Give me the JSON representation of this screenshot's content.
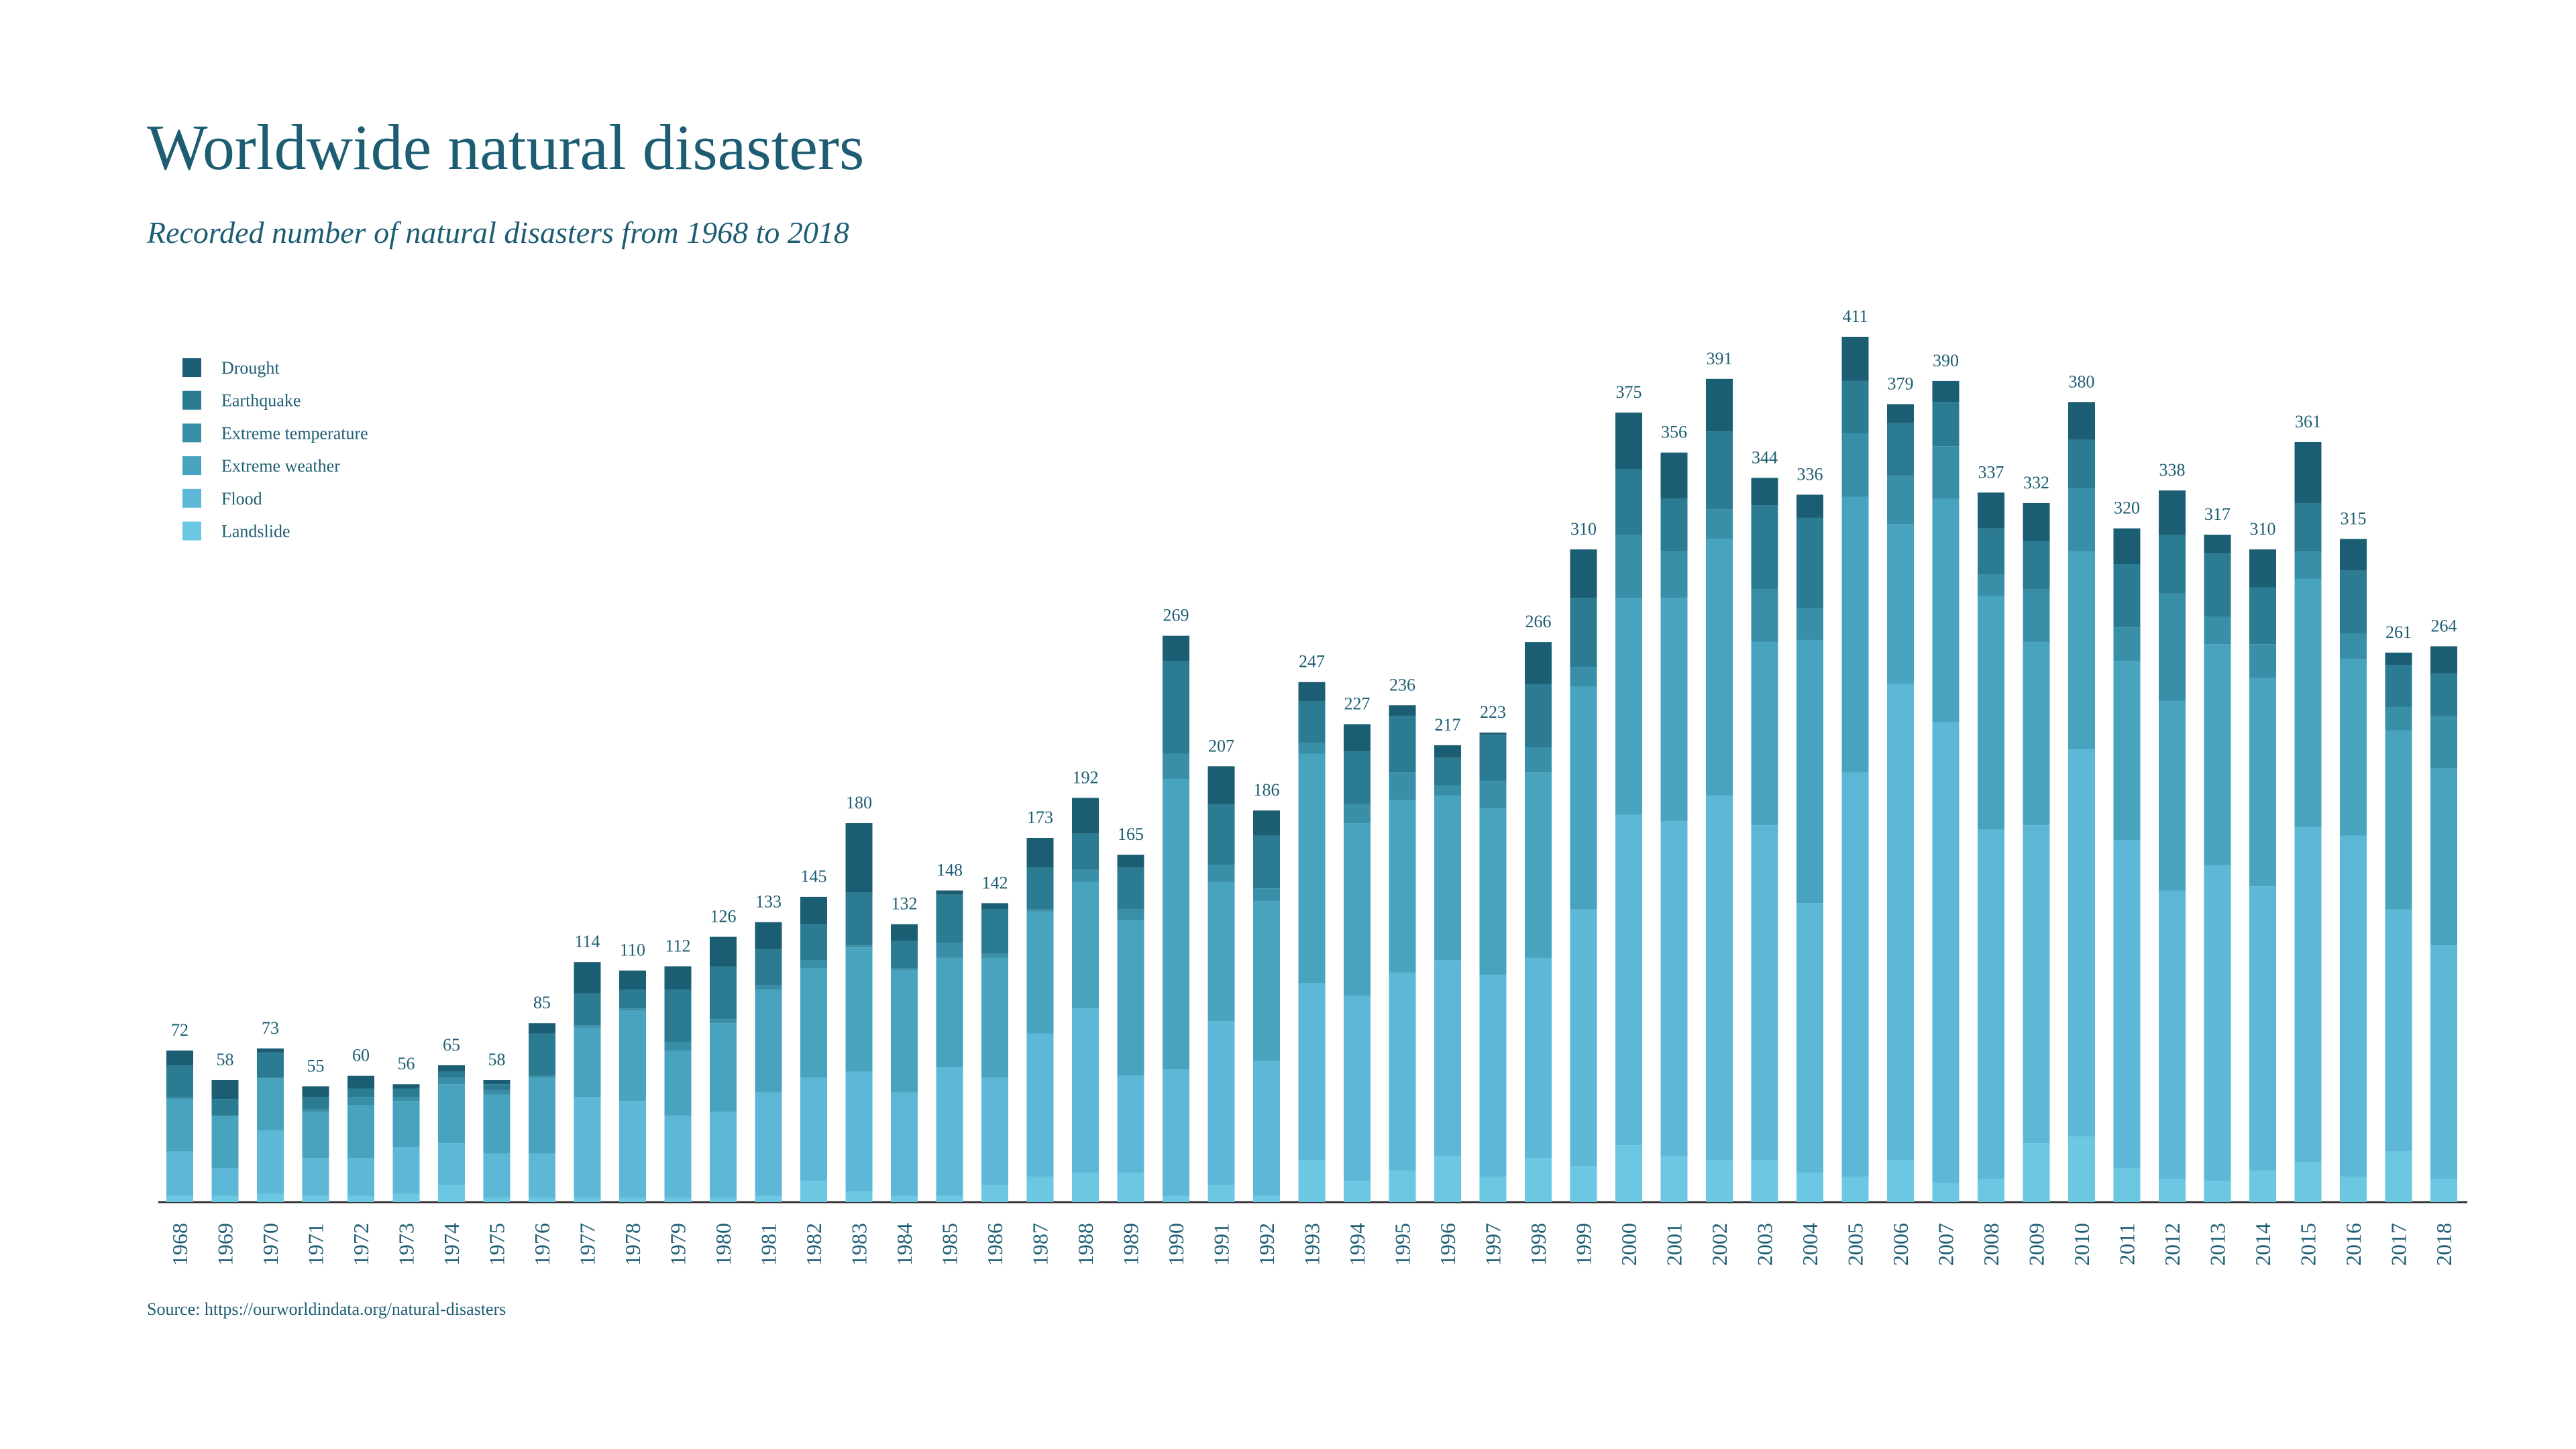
{
  "chart_data": {
    "type": "stacked_bar",
    "title": "Worldwide natural disasters",
    "subtitle": "Recorded number of natural disasters from 1968 to 2018",
    "source": "Source: https://ourworldindata.org/natural-disasters",
    "categories": [
      "1968",
      "1969",
      "1970",
      "1971",
      "1972",
      "1973",
      "1974",
      "1975",
      "1976",
      "1977",
      "1978",
      "1979",
      "1980",
      "1981",
      "1982",
      "1983",
      "1984",
      "1985",
      "1986",
      "1987",
      "1988",
      "1989",
      "1990",
      "1991",
      "1992",
      "1993",
      "1994",
      "1995",
      "1996",
      "1997",
      "1998",
      "1999",
      "2000",
      "2001",
      "2002",
      "2003",
      "2004",
      "2005",
      "2006",
      "2007",
      "2008",
      "2009",
      "2010",
      "2011",
      "2012",
      "2013",
      "2014",
      "2015",
      "2016",
      "2017",
      "2018"
    ],
    "series": [
      {
        "name": "Drought",
        "color": "#1b5e73",
        "values": [
          7,
          9,
          2,
          5,
          6,
          2,
          3,
          2,
          5,
          15,
          9,
          11,
          14,
          13,
          13,
          33,
          8,
          2,
          3,
          14,
          17,
          6,
          12,
          18,
          12,
          9,
          13,
          5,
          6,
          1,
          20,
          23,
          27,
          22,
          25,
          13,
          11,
          21,
          9,
          10,
          17,
          18,
          18,
          17,
          21,
          9,
          18,
          29,
          15,
          6,
          13
        ]
      },
      {
        "name": "Earthquake",
        "color": "#2b7b93",
        "values": [
          15,
          8,
          12,
          6,
          4,
          4,
          3,
          3,
          20,
          15,
          9,
          25,
          25,
          17,
          17,
          25,
          13,
          23,
          21,
          20,
          17,
          20,
          44,
          29,
          25,
          20,
          25,
          27,
          13,
          22,
          30,
          33,
          31,
          25,
          37,
          40,
          43,
          25,
          25,
          21,
          22,
          23,
          23,
          30,
          28,
          30,
          27,
          23,
          30,
          20,
          20
        ]
      },
      {
        "name": "Extreme temperature",
        "color": "#3a8fa8",
        "values": [
          1,
          0,
          0,
          1,
          4,
          2,
          3,
          2,
          1,
          1,
          1,
          4,
          2,
          2,
          4,
          1,
          1,
          7,
          2,
          1,
          6,
          5,
          12,
          8,
          6,
          5,
          9,
          13,
          5,
          13,
          12,
          9,
          30,
          22,
          14,
          25,
          15,
          30,
          23,
          25,
          10,
          25,
          30,
          16,
          51,
          13,
          16,
          13,
          12,
          11,
          25
        ]
      },
      {
        "name": "Extreme weather",
        "color": "#48a3bf",
        "values": [
          25,
          25,
          25,
          22,
          25,
          22,
          28,
          28,
          36,
          33,
          43,
          31,
          42,
          49,
          52,
          59,
          58,
          52,
          57,
          58,
          60,
          74,
          138,
          66,
          76,
          109,
          82,
          82,
          78,
          79,
          88,
          106,
          103,
          106,
          122,
          87,
          125,
          131,
          76,
          106,
          111,
          87,
          94,
          85,
          90,
          105,
          99,
          118,
          84,
          85,
          84
        ]
      },
      {
        "name": "Flood",
        "color": "#5db8d7",
        "values": [
          21,
          13,
          30,
          18,
          18,
          22,
          20,
          21,
          21,
          48,
          46,
          39,
          41,
          49,
          49,
          57,
          49,
          61,
          51,
          68,
          78,
          46,
          60,
          78,
          64,
          84,
          88,
          94,
          93,
          96,
          95,
          122,
          157,
          159,
          173,
          159,
          128,
          192,
          226,
          219,
          166,
          151,
          184,
          156,
          137,
          150,
          135,
          159,
          162,
          115,
          111
        ]
      },
      {
        "name": "Landslide",
        "color": "#6bc7e2",
        "values": [
          3,
          3,
          4,
          3,
          3,
          4,
          8,
          2,
          2,
          2,
          2,
          2,
          2,
          3,
          10,
          5,
          3,
          3,
          8,
          12,
          14,
          14,
          3,
          8,
          3,
          20,
          10,
          15,
          22,
          12,
          21,
          17,
          27,
          22,
          20,
          20,
          14,
          12,
          20,
          9,
          11,
          28,
          31,
          16,
          11,
          10,
          15,
          19,
          12,
          24,
          11
        ]
      }
    ],
    "totals": [
      72,
      58,
      73,
      55,
      60,
      56,
      65,
      58,
      85,
      114,
      110,
      112,
      126,
      133,
      145,
      180,
      132,
      148,
      142,
      173,
      192,
      165,
      269,
      207,
      186,
      247,
      227,
      236,
      217,
      223,
      266,
      310,
      375,
      356,
      391,
      344,
      336,
      411,
      379,
      390,
      337,
      332,
      380,
      320,
      338,
      317,
      310,
      361,
      315,
      261,
      264
    ],
    "legend": "top-left"
  }
}
